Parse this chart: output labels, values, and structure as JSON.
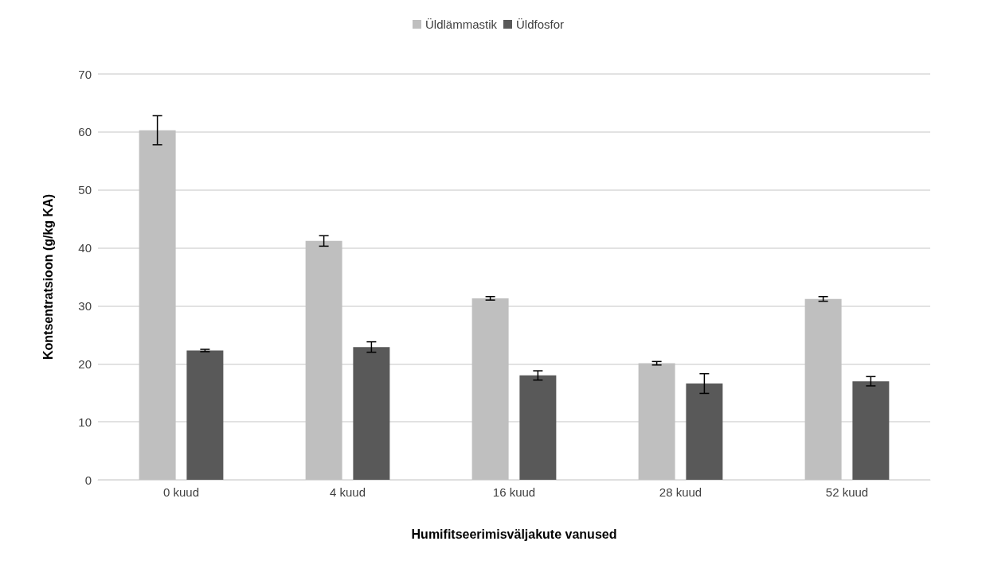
{
  "chart_data": {
    "type": "bar",
    "xlabel": "Humifitseerimisväljakute vanused",
    "ylabel": "Kontsentratsioon (g/kg KA)",
    "categories": [
      "0 kuud",
      "4 kuud",
      "16 kuud",
      "28 kuud",
      "52 kuud"
    ],
    "series": [
      {
        "name": "Üldlämmastik",
        "color": "#bfbfbf",
        "values": [
          60.3,
          41.2,
          31.3,
          20.1,
          31.2
        ],
        "errors": [
          2.5,
          0.9,
          0.3,
          0.3,
          0.4
        ]
      },
      {
        "name": "Üldfosfor",
        "color": "#595959",
        "values": [
          22.3,
          22.9,
          18.0,
          16.6,
          17.0
        ],
        "errors": [
          0.2,
          0.9,
          0.8,
          1.7,
          0.8
        ]
      }
    ],
    "ylim": [
      0,
      70
    ],
    "yticks": [
      0,
      10,
      20,
      30,
      40,
      50,
      60,
      70
    ],
    "grid": "y",
    "legend": "top"
  }
}
